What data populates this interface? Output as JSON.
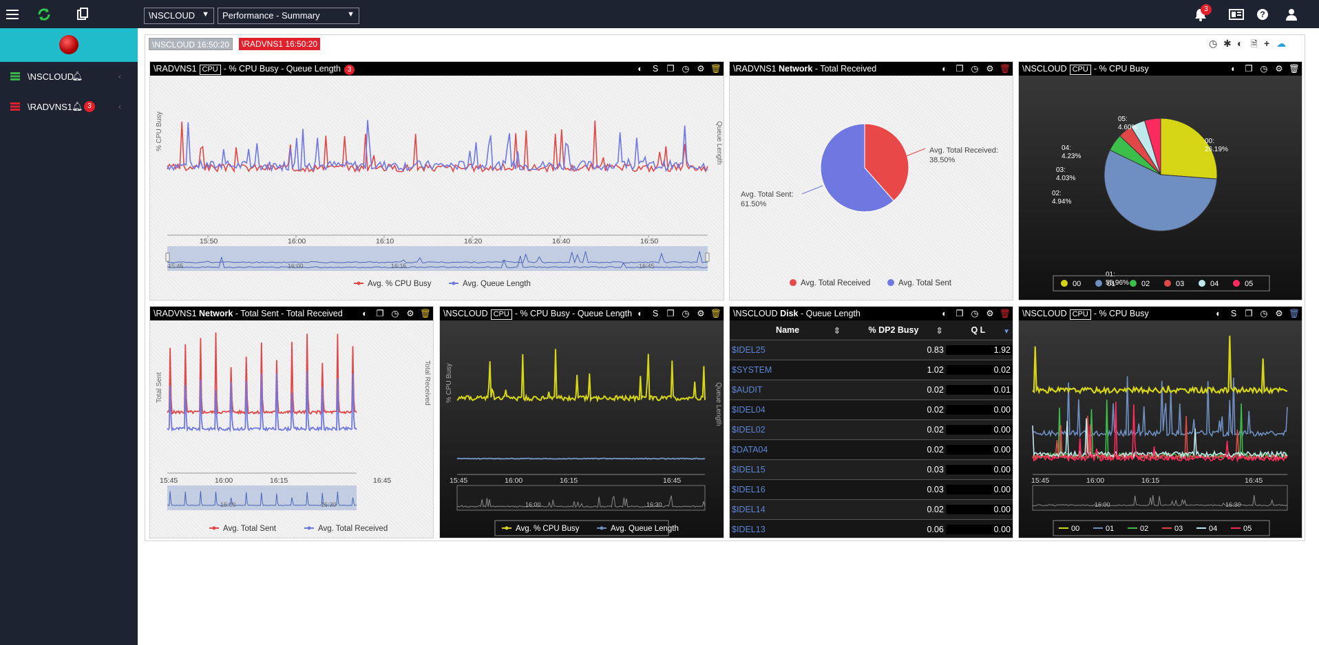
{
  "topbar": {
    "system_select": "\\NSCLOUD",
    "view_select": "Performance - Summary",
    "notification_count": "3"
  },
  "sidebar": {
    "items": [
      {
        "label": "\\NSCLOUD",
        "badge": ""
      },
      {
        "label": "\\RADVNS1",
        "badge": "3"
      }
    ]
  },
  "timestamps": [
    {
      "label": "\\NSCLOUD  16:50:20"
    },
    {
      "label": "\\RADVNS1  16:50:20"
    }
  ],
  "colors": {
    "topbar": "#1d2331",
    "accent": "#21bccc",
    "alert": "#e0202a",
    "red_series": "#e04848",
    "blue_series": "#6f78e0",
    "yellow_series": "#d6d617"
  },
  "panels": {
    "p1": {
      "system": "\\RADVNS1",
      "tag": "CPU",
      "title": "- % CPU Busy - Queue Length",
      "badge": "3",
      "ylabel": "% CPU Busy",
      "y2label": "Queue Length",
      "legend": [
        "Avg. % CPU Busy",
        "Avg. Queue Length"
      ]
    },
    "p2": {
      "system": "\\RADVNS1",
      "bold": "Network",
      "title": "- Total Received",
      "legend": [
        "Avg. Total Received",
        "Avg. Total Sent"
      ]
    },
    "p3": {
      "system": "\\NSCLOUD",
      "tag": "CPU",
      "title": "- % CPU Busy",
      "legend": [
        "00",
        "01",
        "02",
        "03",
        "04",
        "05"
      ]
    },
    "p4": {
      "system": "\\RADVNS1",
      "bold": "Network",
      "title": "- Total Sent - Total Received",
      "ylabel": "Total Sent",
      "y2label": "Total Received",
      "legend": [
        "Avg. Total Sent",
        "Avg. Total Received"
      ]
    },
    "p5": {
      "system": "\\NSCLOUD",
      "tag": "CPU",
      "title": "- % CPU Busy - Queue Length",
      "ylabel": "% CPU Busy",
      "y2label": "Queue Length",
      "legend": [
        "Avg. % CPU Busy",
        "Avg. Queue Length"
      ]
    },
    "p6": {
      "system": "\\NSCLOUD",
      "bold": "Disk",
      "title": "- Queue Length",
      "columns": [
        "Name",
        "% DP2 Busy",
        "Q L"
      ],
      "rows": [
        [
          "$IDEL25",
          "0.83",
          "1.92"
        ],
        [
          "$SYSTEM",
          "1.02",
          "0.02"
        ],
        [
          "$AUDIT",
          "0.02",
          "0.01"
        ],
        [
          "$IDEL04",
          "0.02",
          "0.00"
        ],
        [
          "$IDEL02",
          "0.02",
          "0.00"
        ],
        [
          "$DATA04",
          "0.02",
          "0.00"
        ],
        [
          "$IDEL15",
          "0.03",
          "0.00"
        ],
        [
          "$IDEL16",
          "0.03",
          "0.00"
        ],
        [
          "$IDEL14",
          "0.02",
          "0.00"
        ],
        [
          "$IDEL13",
          "0.06",
          "0.00"
        ]
      ]
    },
    "p7": {
      "system": "\\NSCLOUD",
      "tag": "CPU",
      "title": "- % CPU Busy",
      "legend": [
        "00",
        "01",
        "02",
        "03",
        "04",
        "05"
      ]
    }
  },
  "chart_data": [
    {
      "type": "line",
      "id": "p1",
      "x_ticks": [
        "15:50",
        "16:00",
        "16:10",
        "16:20",
        "16:40",
        "16:50"
      ],
      "nav_ticks": [
        "15:45",
        "16:00",
        "16:15",
        "16:45"
      ],
      "series": [
        {
          "name": "Avg. % CPU Busy",
          "base": 0.5
        },
        {
          "name": "Avg. Queue Length",
          "base": 0.5
        }
      ]
    },
    {
      "type": "pie",
      "id": "p2",
      "slices": [
        {
          "name": "Avg. Total Received",
          "value": 38.5,
          "label": "Avg. Total Received:\n38.50%"
        },
        {
          "name": "Avg. Total Sent",
          "value": 61.5,
          "label": "Avg. Total Sent:\n61.50%"
        }
      ]
    },
    {
      "type": "pie",
      "id": "p3",
      "slices": [
        {
          "name": "00",
          "value": 26.19,
          "label": "00:\n26.19%"
        },
        {
          "name": "01",
          "value": 55.96,
          "label": "01:\n55.96%"
        },
        {
          "name": "02",
          "value": 4.94,
          "label": "02:\n4.94%"
        },
        {
          "name": "03",
          "value": 4.03,
          "label": "03:\n4.03%"
        },
        {
          "name": "04",
          "value": 4.23,
          "label": "04:\n4.23%"
        },
        {
          "name": "05",
          "value": 4.6,
          "label": "05:\n4.60%"
        }
      ]
    },
    {
      "type": "line",
      "id": "p4",
      "x_ticks": [
        "15:45",
        "16:00",
        "16:15",
        "16:45"
      ],
      "nav_ticks": [
        "16:00",
        "16:30"
      ],
      "series": [
        {
          "name": "Avg. Total Sent"
        },
        {
          "name": "Avg. Total Received"
        }
      ]
    },
    {
      "type": "line",
      "id": "p5",
      "x_ticks": [
        "15:45",
        "16:00",
        "16:15",
        "16:45"
      ],
      "nav_ticks": [
        "16:00",
        "16:30"
      ],
      "series": [
        {
          "name": "Avg. % CPU Busy"
        },
        {
          "name": "Avg. Queue Length"
        }
      ]
    },
    {
      "type": "table",
      "id": "p6"
    },
    {
      "type": "line",
      "id": "p7",
      "x_ticks": [
        "15:45",
        "16:00",
        "16:15",
        "16:45"
      ],
      "nav_ticks": [
        "16:00",
        "16:30"
      ],
      "series": [
        {
          "name": "00"
        },
        {
          "name": "01"
        },
        {
          "name": "02"
        },
        {
          "name": "03"
        },
        {
          "name": "04"
        },
        {
          "name": "05"
        }
      ]
    }
  ]
}
